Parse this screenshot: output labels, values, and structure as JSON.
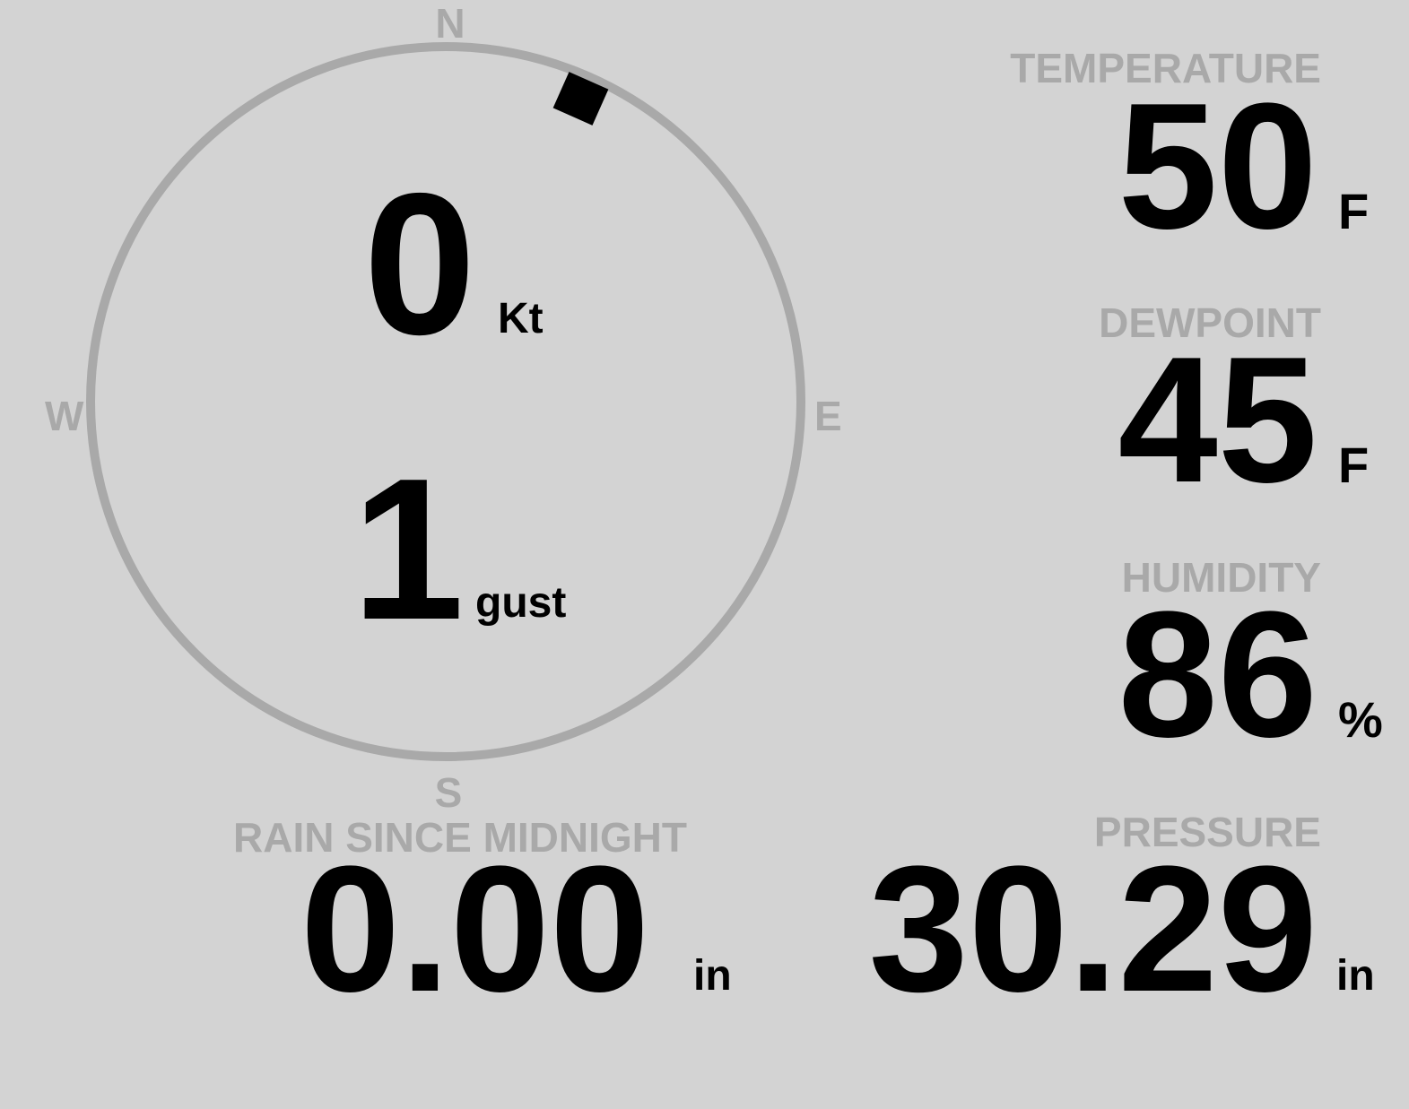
{
  "colors": {
    "background": "#d3d3d3",
    "label": "#a9a9a9",
    "value": "#000000",
    "compass_ring": "#a9a9a9"
  },
  "wind": {
    "compass": {
      "north": "N",
      "south": "S",
      "east": "E",
      "west": "W"
    },
    "direction_deg": 24,
    "speed": "0",
    "speed_unit": "Kt",
    "gust": "1",
    "gust_unit": "gust"
  },
  "temperature": {
    "label": "TEMPERATURE",
    "value": "50",
    "unit": "F"
  },
  "dewpoint": {
    "label": "DEWPOINT",
    "value": "45",
    "unit": "F"
  },
  "humidity": {
    "label": "HUMIDITY",
    "value": "86",
    "unit": "%"
  },
  "rain": {
    "label": "RAIN SINCE MIDNIGHT",
    "value": "0.00",
    "unit": "in"
  },
  "pressure": {
    "label": "PRESSURE",
    "value": "30.29",
    "unit": "in"
  }
}
